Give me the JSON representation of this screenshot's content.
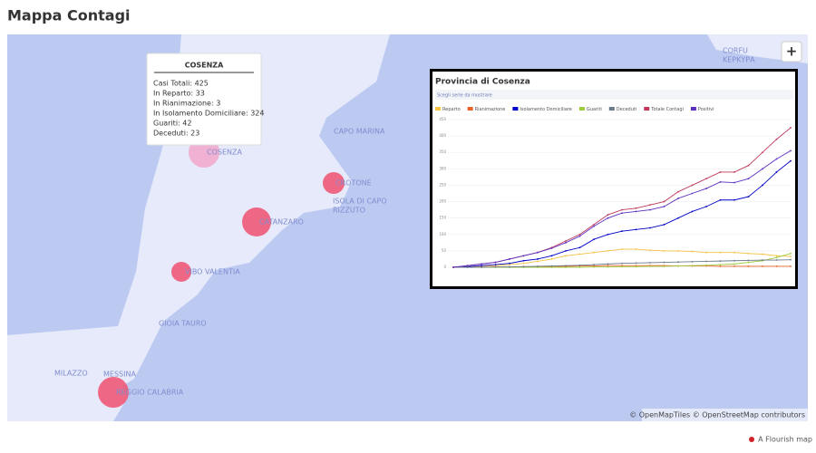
{
  "page": {
    "title": "Mappa Contagi",
    "zoom_button": "+",
    "attribution": "© OpenMapTiles © OpenStreetMap contributors",
    "credit": "A Flourish map",
    "cities": [
      "COSENZA",
      "CAPO MARINA",
      "CROTONE",
      "ISOLA DI CAPO",
      "RIZZUTO",
      "CATANZARO",
      "VIBO VALENTIA",
      "GIOIA TAURO",
      "MILAZZO",
      "MESSINA",
      "REGGIO CALABRIA",
      "CORFU",
      "ΚΕΡΚΥΡΑ"
    ],
    "tooltip": {
      "title": "COSENZA",
      "lines": [
        "Casi Totali: 425",
        "In Reparto: 33",
        "In Rianimazione: 3",
        "In Isolamento Domiciliare: 324",
        "Guariti: 42",
        "Deceduti: 23"
      ]
    }
  },
  "chart_data": {
    "type": "line",
    "title": "Provincia di Cosenza",
    "subtitle": "Scegli serie da mostrare",
    "categories": [
      null,
      null,
      null,
      null,
      null,
      null,
      null,
      null,
      null,
      null,
      null,
      null,
      null,
      null,
      null,
      null,
      null,
      null,
      null,
      null,
      null,
      null,
      null,
      null,
      null
    ],
    "ylim": [
      0,
      450
    ],
    "yticks": [
      0,
      50,
      100,
      150,
      200,
      250,
      300,
      350,
      400,
      450
    ],
    "grid": true,
    "series": [
      {
        "name": "Reparto",
        "color": "#f5c242",
        "values": [
          0,
          2,
          3,
          5,
          8,
          12,
          18,
          25,
          35,
          40,
          45,
          50,
          55,
          55,
          52,
          50,
          50,
          48,
          45,
          45,
          45,
          42,
          40,
          35,
          33
        ]
      },
      {
        "name": "Rianimazione",
        "color": "#e8632a",
        "values": [
          0,
          0,
          0,
          1,
          1,
          2,
          2,
          3,
          3,
          4,
          4,
          5,
          5,
          5,
          5,
          5,
          4,
          4,
          4,
          3,
          3,
          3,
          3,
          3,
          3
        ]
      },
      {
        "name": "Isolamento Domiciliare",
        "color": "#0000c8",
        "values": [
          0,
          2,
          5,
          8,
          12,
          20,
          25,
          35,
          50,
          60,
          85,
          100,
          110,
          115,
          120,
          130,
          150,
          170,
          185,
          205,
          205,
          215,
          250,
          290,
          324
        ]
      },
      {
        "name": "Guariti",
        "color": "#9ccc3c",
        "values": [
          0,
          0,
          0,
          0,
          0,
          0,
          0,
          0,
          0,
          0,
          1,
          1,
          2,
          2,
          3,
          3,
          4,
          5,
          6,
          8,
          10,
          15,
          20,
          30,
          42
        ]
      },
      {
        "name": "Deceduti",
        "color": "#6b7a8a",
        "values": [
          0,
          0,
          0,
          1,
          1,
          2,
          3,
          4,
          5,
          6,
          8,
          10,
          12,
          13,
          14,
          15,
          16,
          17,
          18,
          19,
          20,
          21,
          22,
          22,
          23
        ]
      },
      {
        "name": "Totale Contagi",
        "color": "#c0395a",
        "values": [
          0,
          5,
          10,
          15,
          25,
          35,
          45,
          60,
          80,
          100,
          130,
          160,
          175,
          180,
          190,
          200,
          230,
          250,
          270,
          290,
          290,
          310,
          350,
          390,
          425
        ]
      },
      {
        "name": "Positivi",
        "color": "#5b2fbf",
        "values": [
          0,
          5,
          10,
          15,
          25,
          35,
          45,
          58,
          75,
          95,
          125,
          150,
          165,
          170,
          175,
          185,
          210,
          225,
          240,
          260,
          258,
          270,
          300,
          330,
          355
        ]
      }
    ]
  }
}
